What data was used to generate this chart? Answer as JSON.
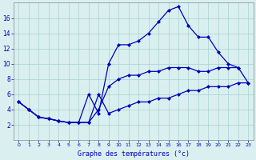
{
  "title": "Graphe des températures (°c)",
  "background_color": "#daf0f0",
  "grid_color": "#aacfcf",
  "line_color": "#0000bb",
  "marker": "D",
  "markersize": 2.5,
  "linewidth": 0.9,
  "xlim": [
    -0.5,
    23.5
  ],
  "ylim": [
    0,
    18
  ],
  "xticks": [
    0,
    1,
    2,
    3,
    4,
    5,
    6,
    7,
    8,
    9,
    10,
    11,
    12,
    13,
    14,
    15,
    16,
    17,
    18,
    19,
    20,
    21,
    22,
    23
  ],
  "yticks": [
    2,
    4,
    6,
    8,
    10,
    12,
    14,
    16
  ],
  "line1_x": [
    0,
    1,
    2,
    3,
    4,
    5,
    6,
    7,
    8,
    9,
    10,
    11,
    12,
    13,
    14,
    15,
    16,
    17,
    18,
    19,
    20,
    21,
    22,
    23
  ],
  "line1_y": [
    5.0,
    4.0,
    3.0,
    2.8,
    2.5,
    2.3,
    2.3,
    2.3,
    6.0,
    3.5,
    4.0,
    4.5,
    5.0,
    5.0,
    5.5,
    5.5,
    6.0,
    6.5,
    6.5,
    7.0,
    7.0,
    7.0,
    7.5,
    7.5
  ],
  "line2_x": [
    0,
    1,
    2,
    3,
    4,
    5,
    6,
    7,
    8,
    9,
    10,
    11,
    12,
    13,
    14,
    15,
    16,
    17,
    18,
    19,
    20,
    21,
    22,
    23
  ],
  "line2_y": [
    5.0,
    4.0,
    3.0,
    2.8,
    2.5,
    2.3,
    2.3,
    2.3,
    4.0,
    7.0,
    8.0,
    8.5,
    8.5,
    9.0,
    9.0,
    9.5,
    9.5,
    9.5,
    9.0,
    9.0,
    9.5,
    9.5,
    9.5,
    7.5
  ],
  "line3_x": [
    0,
    1,
    2,
    3,
    4,
    5,
    6,
    7,
    8,
    9,
    10,
    11,
    12,
    13,
    14,
    15,
    16,
    17,
    18,
    19,
    20,
    21,
    22,
    23
  ],
  "line3_y": [
    5.0,
    4.0,
    3.0,
    2.8,
    2.5,
    2.3,
    2.3,
    6.0,
    3.5,
    10.0,
    12.5,
    12.5,
    13.0,
    14.0,
    15.5,
    17.0,
    17.5,
    15.0,
    13.5,
    13.5,
    11.5,
    10.0,
    9.5,
    null
  ]
}
